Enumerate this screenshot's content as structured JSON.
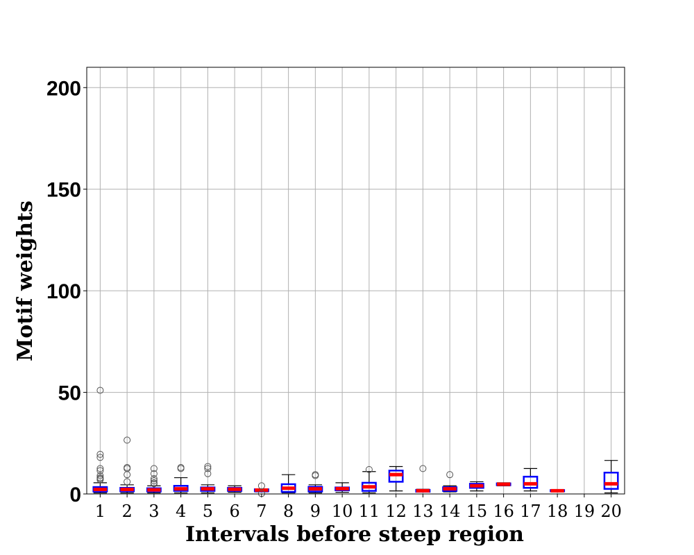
{
  "chart_data": {
    "type": "box",
    "xlabel": "Intervals before steep region",
    "ylabel": "Motif weights",
    "ylim": [
      0,
      210
    ],
    "yticks": [
      0,
      50,
      100,
      150,
      200
    ],
    "categories": [
      "1",
      "2",
      "3",
      "4",
      "5",
      "6",
      "7",
      "8",
      "9",
      "10",
      "11",
      "12",
      "13",
      "14",
      "15",
      "16",
      "17",
      "18",
      "19",
      "20"
    ],
    "grid": true,
    "colors": {
      "box": "#0000ff",
      "median": "#ff0000",
      "whisker": "#000000",
      "flier": "#555555"
    },
    "boxes": [
      {
        "category": "1",
        "q1": 1.2,
        "median": 2.2,
        "q3": 3.4,
        "whisker_low": 0.5,
        "whisker_high": 5.5,
        "fliers": [
          51,
          19.5,
          18,
          12.5,
          11.5,
          9,
          8,
          7.5,
          7
        ]
      },
      {
        "category": "2",
        "q1": 1.3,
        "median": 2.2,
        "q3": 3.0,
        "whisker_low": 0.5,
        "whisker_high": 4.5,
        "fliers": [
          26.5,
          13,
          12.5,
          9.5,
          6
        ]
      },
      {
        "category": "3",
        "q1": 1.2,
        "median": 2.0,
        "q3": 2.8,
        "whisker_low": 0.5,
        "whisker_high": 4.0,
        "fliers": [
          12.5,
          10,
          7.5,
          6.5,
          5.5,
          5
        ]
      },
      {
        "category": "4",
        "q1": 1.5,
        "median": 2.5,
        "q3": 4.0,
        "whisker_low": 0.5,
        "whisker_high": 8.0,
        "fliers": [
          13,
          12.5
        ]
      },
      {
        "category": "5",
        "q1": 1.5,
        "median": 2.5,
        "q3": 3.2,
        "whisker_low": 0.5,
        "whisker_high": 4.5,
        "fliers": [
          13.5,
          12.5,
          10
        ]
      },
      {
        "category": "6",
        "q1": 1.5,
        "median": 2.3,
        "q3": 3.0,
        "whisker_low": 0.8,
        "whisker_high": 4.0,
        "fliers": []
      },
      {
        "category": "7",
        "q1": 1.3,
        "median": 1.9,
        "q3": 2.3,
        "whisker_low": 1.0,
        "whisker_high": 2.5,
        "fliers": [
          4,
          0.2
        ]
      },
      {
        "category": "8",
        "q1": 1.0,
        "median": 2.8,
        "q3": 4.8,
        "whisker_low": 0.5,
        "whisker_high": 9.5,
        "fliers": []
      },
      {
        "category": "9",
        "q1": 1.2,
        "median": 2.5,
        "q3": 3.5,
        "whisker_low": 0.5,
        "whisker_high": 4.5,
        "fliers": [
          9.5,
          9
        ]
      },
      {
        "category": "10",
        "q1": 1.8,
        "median": 2.6,
        "q3": 3.2,
        "whisker_low": 0.8,
        "whisker_high": 5.5,
        "fliers": []
      },
      {
        "category": "11",
        "q1": 1.5,
        "median": 3.5,
        "q3": 5.5,
        "whisker_low": 0.5,
        "whisker_high": 11,
        "fliers": [
          12
        ]
      },
      {
        "category": "12",
        "q1": 6.0,
        "median": 9.5,
        "q3": 11.5,
        "whisker_low": 1.5,
        "whisker_high": 13.5,
        "fliers": []
      },
      {
        "category": "13",
        "q1": 1.1,
        "median": 1.6,
        "q3": 2.0,
        "whisker_low": 1.0,
        "whisker_high": 2.3,
        "fliers": [
          12.5
        ]
      },
      {
        "category": "14",
        "q1": 1.5,
        "median": 2.5,
        "q3": 3.3,
        "whisker_low": 1.0,
        "whisker_high": 4.0,
        "fliers": [
          9.5
        ]
      },
      {
        "category": "15",
        "q1": 3.0,
        "median": 4.0,
        "q3": 5.0,
        "whisker_low": 1.5,
        "whisker_high": 6.0,
        "fliers": []
      },
      {
        "category": "16",
        "q1": 4.3,
        "median": 4.8,
        "q3": 5.2,
        "whisker_low": 4.0,
        "whisker_high": 5.5,
        "fliers": []
      },
      {
        "category": "17",
        "q1": 3.0,
        "median": 5.0,
        "q3": 8.5,
        "whisker_low": 1.5,
        "whisker_high": 12.5,
        "fliers": []
      },
      {
        "category": "18",
        "q1": 1.3,
        "median": 1.6,
        "q3": 1.9,
        "whisker_low": 1.3,
        "whisker_high": 1.9,
        "fliers": []
      },
      {
        "category": "20",
        "q1": 2.5,
        "median": 5.0,
        "q3": 10.5,
        "whisker_low": 0.5,
        "whisker_high": 16.5,
        "fliers": []
      }
    ]
  }
}
